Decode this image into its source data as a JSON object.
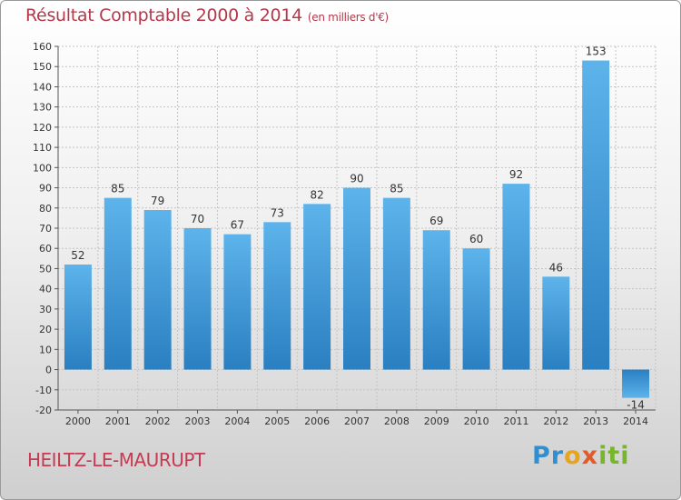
{
  "header": {
    "title": "Résultat Comptable 2000 à 2014",
    "subtitle": "(en milliers d'€)"
  },
  "footer": {
    "commune": "HEILTZ-LE-MAURUPT",
    "logo": "Proxiti"
  },
  "colors": {
    "title": "#b5384a",
    "bar_light": "#5db3ea",
    "bar_dark": "#2a7fc1"
  },
  "chart_data": {
    "type": "bar",
    "title": "Résultat Comptable 2000 à 2014",
    "subtitle": "(en milliers d'€)",
    "xlabel": "",
    "ylabel": "",
    "categories": [
      "2000",
      "2001",
      "2002",
      "2003",
      "2004",
      "2005",
      "2006",
      "2007",
      "2008",
      "2009",
      "2010",
      "2011",
      "2012",
      "2013",
      "2014"
    ],
    "values": [
      52,
      85,
      79,
      70,
      67,
      73,
      82,
      90,
      85,
      69,
      60,
      92,
      46,
      153,
      -14
    ],
    "ylim": [
      -20,
      160
    ],
    "ytick_step": 10,
    "grid": true,
    "legend": "none"
  }
}
